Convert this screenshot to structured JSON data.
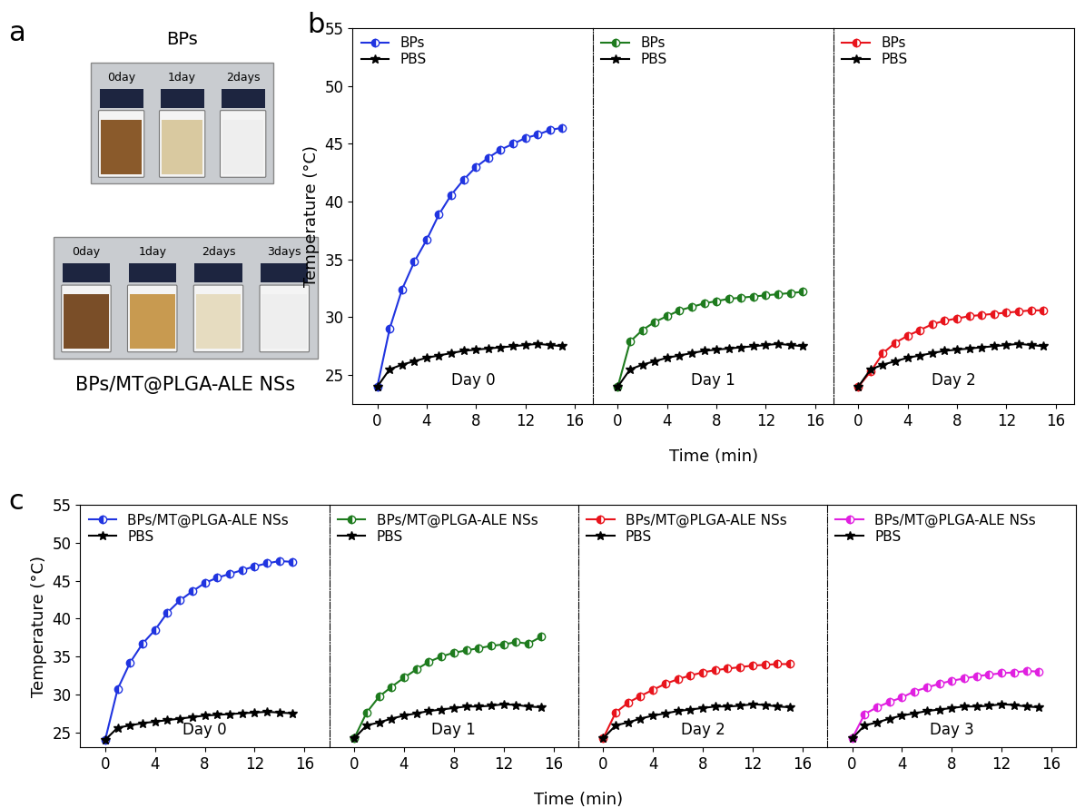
{
  "panels": {
    "a": {
      "label": "a",
      "groups": [
        {
          "title": "BPs",
          "vials": [
            "0day",
            "1day",
            "2days"
          ]
        },
        {
          "title": "BPs/MT@PLGA-ALE NSs",
          "vials": [
            "0day",
            "1day",
            "2days",
            "3days"
          ]
        }
      ]
    },
    "b": {
      "label": "b",
      "x_label": "Time (min)",
      "y_label": "Temperature (°C)"
    },
    "c": {
      "label": "c",
      "x_label": "Time (min)",
      "y_label": "Temperature (°C)"
    }
  },
  "chart_data": [
    {
      "panel": "b",
      "type": "line",
      "annotation": "Day 0",
      "legend": "upper left",
      "x": [
        0,
        1,
        2,
        3,
        4,
        5,
        6,
        7,
        8,
        9,
        10,
        11,
        12,
        13,
        14,
        15
      ],
      "xlim": [
        -2,
        17.5
      ],
      "xticks": [
        0,
        4,
        8,
        12,
        16
      ],
      "ylim": [
        22.5,
        55
      ],
      "yticks": [
        25,
        30,
        35,
        40,
        45,
        50,
        55
      ],
      "series": [
        {
          "name": "BPs",
          "color": "#2034e0",
          "marker": "circle",
          "values": [
            24,
            29,
            32.4,
            34.8,
            36.7,
            38.9,
            40.6,
            41.9,
            43,
            43.8,
            44.5,
            45,
            45.5,
            45.8,
            46.2,
            46.4
          ]
        },
        {
          "name": "PBS",
          "color": "#000000",
          "marker": "star",
          "values": [
            24,
            25.5,
            25.9,
            26.2,
            26.5,
            26.7,
            26.9,
            27.1,
            27.2,
            27.3,
            27.4,
            27.5,
            27.6,
            27.7,
            27.6,
            27.5
          ]
        }
      ]
    },
    {
      "panel": "b",
      "type": "line",
      "annotation": "Day 1",
      "legend": "upper left",
      "tick_labels": "x",
      "x": [
        0,
        1,
        2,
        3,
        4,
        5,
        6,
        7,
        8,
        9,
        10,
        11,
        12,
        13,
        14,
        15
      ],
      "xlim": [
        -2,
        17.5
      ],
      "xticks": [
        0,
        4,
        8,
        12,
        16
      ],
      "ylim": [
        22.5,
        55
      ],
      "yticks": [
        25,
        30,
        35,
        40,
        45,
        50,
        55
      ],
      "series": [
        {
          "name": "BPs",
          "color": "#1e7b1e",
          "marker": "circle",
          "values": [
            24,
            27.9,
            28.9,
            29.6,
            30.1,
            30.6,
            30.9,
            31.2,
            31.4,
            31.6,
            31.7,
            31.8,
            31.9,
            32.0,
            32.1,
            32.2
          ]
        },
        {
          "name": "PBS",
          "color": "#000000",
          "marker": "star",
          "values": [
            24,
            25.5,
            25.9,
            26.2,
            26.5,
            26.7,
            26.9,
            27.1,
            27.2,
            27.3,
            27.4,
            27.5,
            27.6,
            27.7,
            27.6,
            27.5
          ]
        }
      ]
    },
    {
      "panel": "b",
      "type": "line",
      "annotation": "Day 2",
      "legend": "upper left",
      "tick_labels": "x",
      "x": [
        0,
        1,
        2,
        3,
        4,
        5,
        6,
        7,
        8,
        9,
        10,
        11,
        12,
        13,
        14,
        15
      ],
      "xlim": [
        -2,
        17.5
      ],
      "xticks": [
        0,
        4,
        8,
        12,
        16
      ],
      "ylim": [
        22.5,
        55
      ],
      "yticks": [
        25,
        30,
        35,
        40,
        45,
        50,
        55
      ],
      "series": [
        {
          "name": "BPs",
          "color": "#e8141c",
          "marker": "circle",
          "values": [
            24,
            25.3,
            26.9,
            27.8,
            28.4,
            28.9,
            29.4,
            29.7,
            29.9,
            30.1,
            30.2,
            30.3,
            30.4,
            30.5,
            30.6,
            30.6
          ]
        },
        {
          "name": "PBS",
          "color": "#000000",
          "marker": "star",
          "values": [
            24,
            25.5,
            25.9,
            26.2,
            26.5,
            26.7,
            26.9,
            27.1,
            27.2,
            27.3,
            27.4,
            27.5,
            27.6,
            27.7,
            27.6,
            27.5
          ]
        }
      ]
    },
    {
      "panel": "c",
      "type": "line",
      "annotation": "Day 0",
      "legend": "upper left",
      "x": [
        0,
        1,
        2,
        3,
        4,
        5,
        6,
        7,
        8,
        9,
        10,
        11,
        12,
        13,
        14,
        15
      ],
      "xlim": [
        -2,
        18
      ],
      "xticks": [
        0,
        4,
        8,
        12,
        16
      ],
      "ylim": [
        23,
        55
      ],
      "yticks": [
        25,
        30,
        35,
        40,
        45,
        50,
        55
      ],
      "series": [
        {
          "name": "BPs/MT@PLGA-ALE NSs",
          "color": "#2034e0",
          "marker": "circle",
          "values": [
            24,
            30.7,
            34.2,
            36.7,
            38.5,
            40.8,
            42.4,
            43.6,
            44.7,
            45.4,
            45.9,
            46.4,
            46.9,
            47.3,
            47.6,
            47.5
          ]
        },
        {
          "name": "PBS",
          "color": "#000000",
          "marker": "star",
          "values": [
            24,
            25.6,
            25.9,
            26.2,
            26.4,
            26.6,
            26.8,
            27.0,
            27.2,
            27.3,
            27.4,
            27.5,
            27.6,
            27.7,
            27.6,
            27.5
          ]
        }
      ]
    },
    {
      "panel": "c",
      "type": "line",
      "annotation": "Day 1",
      "legend": "upper left",
      "tick_labels": "x",
      "x": [
        0,
        1,
        2,
        3,
        4,
        5,
        6,
        7,
        8,
        9,
        10,
        11,
        12,
        13,
        14,
        15
      ],
      "xlim": [
        -2,
        18
      ],
      "xticks": [
        0,
        4,
        8,
        12,
        16
      ],
      "ylim": [
        23,
        55
      ],
      "yticks": [
        25,
        30,
        35,
        40,
        45,
        50,
        55
      ],
      "series": [
        {
          "name": "BPs/MT@PLGA-ALE NSs",
          "color": "#1e7b1e",
          "marker": "circle",
          "values": [
            24.2,
            27.6,
            29.7,
            31.0,
            32.2,
            33.3,
            34.3,
            35.0,
            35.5,
            35.8,
            36.1,
            36.4,
            36.6,
            36.9,
            36.7,
            37.6
          ]
        },
        {
          "name": "PBS",
          "color": "#000000",
          "marker": "star",
          "values": [
            24.2,
            25.9,
            26.3,
            26.8,
            27.2,
            27.5,
            27.8,
            28.0,
            28.2,
            28.4,
            28.4,
            28.5,
            28.7,
            28.6,
            28.4,
            28.3
          ]
        }
      ]
    },
    {
      "panel": "c",
      "type": "line",
      "annotation": "Day 2",
      "legend": "upper left",
      "tick_labels": "x",
      "x": [
        0,
        1,
        2,
        3,
        4,
        5,
        6,
        7,
        8,
        9,
        10,
        11,
        12,
        13,
        14,
        15
      ],
      "xlim": [
        -2,
        18
      ],
      "xticks": [
        0,
        4,
        8,
        12,
        16
      ],
      "ylim": [
        23,
        55
      ],
      "yticks": [
        25,
        30,
        35,
        40,
        45,
        50,
        55
      ],
      "series": [
        {
          "name": "BPs/MT@PLGA-ALE NSs",
          "color": "#e8141c",
          "marker": "circle",
          "values": [
            24.2,
            27.6,
            28.9,
            29.8,
            30.6,
            31.4,
            32.0,
            32.5,
            32.9,
            33.2,
            33.4,
            33.6,
            33.8,
            33.9,
            34.0,
            34.0
          ]
        },
        {
          "name": "PBS",
          "color": "#000000",
          "marker": "star",
          "values": [
            24.2,
            25.9,
            26.3,
            26.8,
            27.2,
            27.5,
            27.8,
            28.0,
            28.2,
            28.4,
            28.4,
            28.5,
            28.7,
            28.6,
            28.4,
            28.3
          ]
        }
      ]
    },
    {
      "panel": "c",
      "type": "line",
      "annotation": "Day 3",
      "legend": "upper left",
      "tick_labels": "x",
      "x": [
        0,
        1,
        2,
        3,
        4,
        5,
        6,
        7,
        8,
        9,
        10,
        11,
        12,
        13,
        14,
        15
      ],
      "xlim": [
        -2,
        18
      ],
      "xticks": [
        0,
        4,
        8,
        12,
        16
      ],
      "ylim": [
        23,
        55
      ],
      "yticks": [
        25,
        30,
        35,
        40,
        45,
        50,
        55
      ],
      "series": [
        {
          "name": "BPs/MT@PLGA-ALE NSs",
          "color": "#e020e0",
          "marker": "circle",
          "values": [
            24.2,
            27.4,
            28.3,
            29.0,
            29.6,
            30.4,
            30.9,
            31.4,
            31.8,
            32.1,
            32.4,
            32.6,
            32.8,
            32.9,
            33.1,
            33.0
          ]
        },
        {
          "name": "PBS",
          "color": "#000000",
          "marker": "star",
          "values": [
            24.2,
            25.9,
            26.3,
            26.8,
            27.2,
            27.5,
            27.8,
            28.0,
            28.2,
            28.4,
            28.4,
            28.5,
            28.7,
            28.6,
            28.4,
            28.3
          ]
        }
      ]
    }
  ]
}
